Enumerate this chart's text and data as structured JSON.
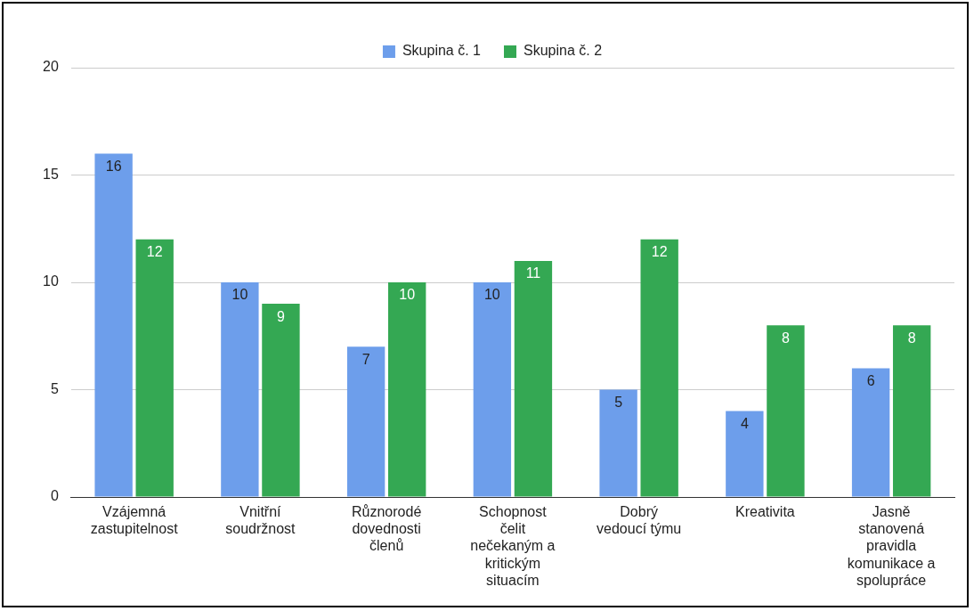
{
  "chart_data": {
    "type": "bar",
    "categories": [
      "Vzájemná zastupitelnost",
      "Vnitřní soudržnost",
      "Různorodé dovednosti členů",
      "Schopnost čelit nečekaným a kritickým situacím",
      "Dobrý vedoucí týmu",
      "Kreativita",
      "Jasně stanovená pravidla komunikace a spolupráce"
    ],
    "series": [
      {
        "name": "Skupina č. 1",
        "color": "#6d9eeb",
        "values": [
          16,
          10,
          7,
          10,
          5,
          4,
          6
        ]
      },
      {
        "name": "Skupina č. 2",
        "color": "#34a853",
        "values": [
          12,
          9,
          10,
          11,
          12,
          8,
          8
        ]
      }
    ],
    "ylim": [
      0,
      20
    ],
    "yticks": [
      0,
      5,
      10,
      15,
      20
    ],
    "grid": "y",
    "legend": "top",
    "data_labels": true
  }
}
